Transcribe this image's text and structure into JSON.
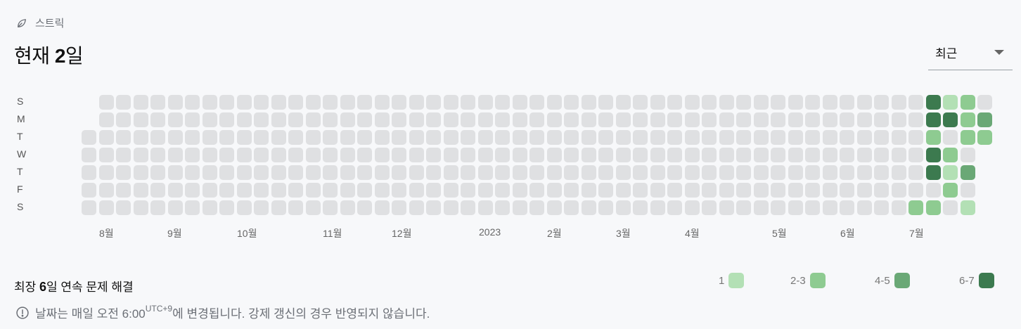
{
  "header": {
    "label": "스트릭",
    "icon": "leaf-icon"
  },
  "title": {
    "prefix": "현재 ",
    "count": "2",
    "suffix": "일"
  },
  "period_select": {
    "value": "최근"
  },
  "day_labels": [
    "S",
    "M",
    "T",
    "W",
    "T",
    "F",
    "S"
  ],
  "month_labels": [
    "8월",
    "9월",
    "10월",
    "11월",
    "12월",
    "2023",
    "2월",
    "3월",
    "4월",
    "5월",
    "6월",
    "7월"
  ],
  "longest": {
    "prefix": "최장 ",
    "count": "6",
    "suffix": "일 연속 문제 해결"
  },
  "legend": [
    {
      "label": "1",
      "color": "#b3e0b5"
    },
    {
      "label": "2-3",
      "color": "#8ecb91"
    },
    {
      "label": "4-5",
      "color": "#6aa876"
    },
    {
      "label": "6-7",
      "color": "#3c7a4f"
    }
  ],
  "footer": {
    "text_before": "날짜는 매일 오전 6:00",
    "sup": "UTC+9",
    "text_after": "에 변경됩니다. 강제 갱신의 경우 반영되지 않습니다."
  },
  "grid": {
    "columns": 53,
    "active_cells": [
      {
        "week": 49,
        "day": 0,
        "level": 4
      },
      {
        "week": 50,
        "day": 0,
        "level": 1
      },
      {
        "week": 51,
        "day": 0,
        "level": 2
      },
      {
        "week": 49,
        "day": 1,
        "level": 4
      },
      {
        "week": 50,
        "day": 1,
        "level": 4
      },
      {
        "week": 51,
        "day": 1,
        "level": 2
      },
      {
        "week": 52,
        "day": 1,
        "level": 3
      },
      {
        "week": 49,
        "day": 2,
        "level": 2
      },
      {
        "week": 51,
        "day": 2,
        "level": 2
      },
      {
        "week": 52,
        "day": 2,
        "level": 2
      },
      {
        "week": 49,
        "day": 3,
        "level": 4
      },
      {
        "week": 50,
        "day": 3,
        "level": 2
      },
      {
        "week": 49,
        "day": 4,
        "level": 4
      },
      {
        "week": 50,
        "day": 4,
        "level": 1
      },
      {
        "week": 51,
        "day": 4,
        "level": 3
      },
      {
        "week": 50,
        "day": 5,
        "level": 2
      },
      {
        "week": 48,
        "day": 6,
        "level": 2
      },
      {
        "week": 49,
        "day": 6,
        "level": 2
      },
      {
        "week": 51,
        "day": 6,
        "level": 1
      }
    ],
    "empty_cells": [
      {
        "week": 0,
        "day": 0
      },
      {
        "week": 0,
        "day": 1
      },
      {
        "week": 52,
        "day": 3
      },
      {
        "week": 52,
        "day": 4
      },
      {
        "week": 52,
        "day": 5
      },
      {
        "week": 52,
        "day": 6
      }
    ]
  }
}
